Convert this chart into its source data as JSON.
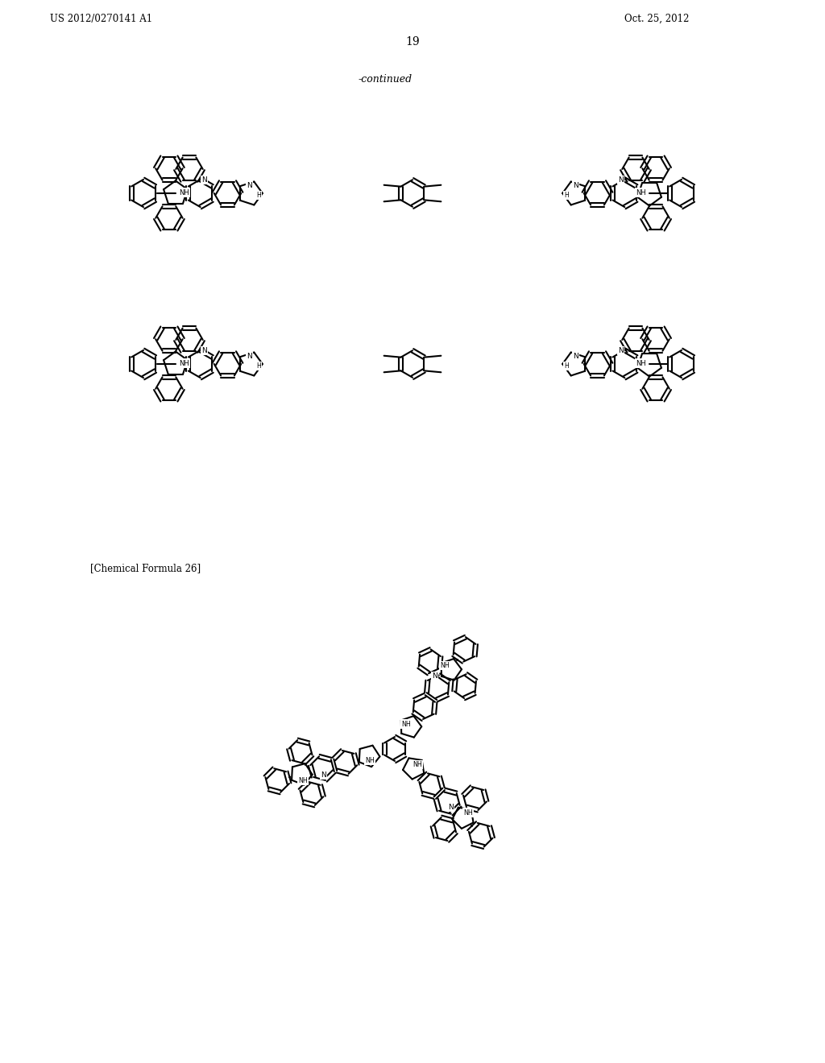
{
  "background_color": "#ffffff",
  "header_left": "US 2012/0270141 A1",
  "header_right": "Oct. 25, 2012",
  "page_number": "19",
  "continued_label": "-continued",
  "chemical_formula_label": "[Chemical Formula 26]"
}
